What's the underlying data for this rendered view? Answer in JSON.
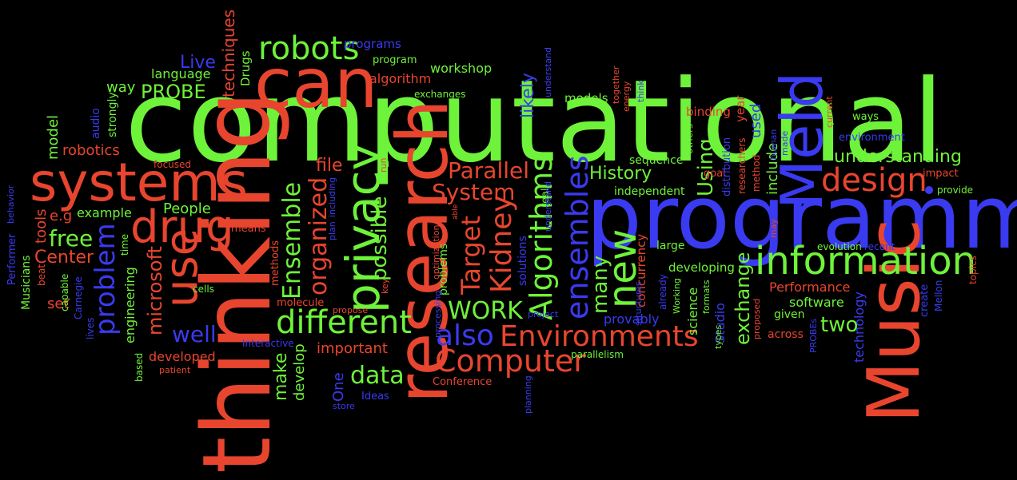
{
  "colors": {
    "red": "#e8452f",
    "green": "#6ff23a",
    "blue": "#3a3af0",
    "background": "#000000"
  },
  "words": [
    {
      "text": "computational",
      "color": "green"
    },
    {
      "text": "programming",
      "color": "blue"
    },
    {
      "text": "thinking",
      "color": "red"
    },
    {
      "text": "Music",
      "color": "red"
    },
    {
      "text": "research",
      "color": "red"
    },
    {
      "text": "can",
      "color": "red"
    },
    {
      "text": "systems",
      "color": "red"
    },
    {
      "text": "Meld",
      "color": "blue"
    },
    {
      "text": "information",
      "color": "green"
    },
    {
      "text": "privacy",
      "color": "green"
    },
    {
      "text": "use",
      "color": "red"
    },
    {
      "text": "drug",
      "color": "red"
    },
    {
      "text": "robots",
      "color": "green"
    },
    {
      "text": "different",
      "color": "green"
    },
    {
      "text": "Computer",
      "color": "red"
    },
    {
      "text": "Environments",
      "color": "red"
    },
    {
      "text": "ensembles",
      "color": "blue"
    },
    {
      "text": "new",
      "color": "green"
    },
    {
      "text": "Algorithms",
      "color": "green"
    },
    {
      "text": "Kidney",
      "color": "red"
    },
    {
      "text": "design",
      "color": "red"
    },
    {
      "text": "also",
      "color": "blue"
    },
    {
      "text": "problem",
      "color": "blue"
    },
    {
      "text": "organized",
      "color": "red"
    },
    {
      "text": "Ensemble",
      "color": "green"
    },
    {
      "text": "WORK",
      "color": "green"
    },
    {
      "text": "possible",
      "color": "green"
    },
    {
      "text": "Target",
      "color": "red"
    },
    {
      "text": "System",
      "color": "red"
    },
    {
      "text": "Parallel",
      "color": "red"
    },
    {
      "text": "well",
      "color": "blue"
    },
    {
      "text": "microsoft",
      "color": "red"
    },
    {
      "text": "data",
      "color": "green"
    },
    {
      "text": "many",
      "color": "green"
    },
    {
      "text": "understanding",
      "color": "green"
    },
    {
      "text": "History",
      "color": "green"
    },
    {
      "text": "Using",
      "color": "green"
    },
    {
      "text": "free",
      "color": "green"
    },
    {
      "text": "exchange",
      "color": "green"
    },
    {
      "text": "two",
      "color": "green"
    },
    {
      "text": "PROBE",
      "color": "green"
    },
    {
      "text": "Live",
      "color": "blue"
    },
    {
      "text": "file",
      "color": "red"
    },
    {
      "text": "Center",
      "color": "red"
    },
    {
      "text": "important",
      "color": "red"
    },
    {
      "text": "make",
      "color": "green"
    },
    {
      "text": "develop",
      "color": "green"
    },
    {
      "text": "likely",
      "color": "blue"
    },
    {
      "text": "techniques",
      "color": "red"
    },
    {
      "text": "robotics",
      "color": "red"
    },
    {
      "text": "tools",
      "color": "red"
    },
    {
      "text": "e.g",
      "color": "red"
    },
    {
      "text": "People",
      "color": "green"
    },
    {
      "text": "example",
      "color": "green"
    },
    {
      "text": "model",
      "color": "green"
    },
    {
      "text": "language",
      "color": "green"
    },
    {
      "text": "way",
      "color": "green"
    },
    {
      "text": "algorithm",
      "color": "red"
    },
    {
      "text": "workshop",
      "color": "green"
    },
    {
      "text": "include",
      "color": "green"
    },
    {
      "text": "used",
      "color": "blue"
    },
    {
      "text": "provably",
      "color": "blue"
    },
    {
      "text": "science",
      "color": "green"
    },
    {
      "text": "Studio",
      "color": "blue"
    },
    {
      "text": "developed",
      "color": "red"
    },
    {
      "text": "engineering",
      "color": "green"
    },
    {
      "text": "One",
      "color": "blue"
    },
    {
      "text": "Performance",
      "color": "red"
    },
    {
      "text": "software",
      "color": "green"
    },
    {
      "text": "technology",
      "color": "blue"
    },
    {
      "text": "developing",
      "color": "green"
    },
    {
      "text": "concurrency",
      "color": "red"
    },
    {
      "text": "binding",
      "color": "red"
    },
    {
      "text": "year",
      "color": "red"
    },
    {
      "text": "models",
      "color": "green"
    },
    {
      "text": "Drugs",
      "color": "green"
    },
    {
      "text": "set",
      "color": "red"
    },
    {
      "text": "solutions",
      "color": "blue"
    },
    {
      "text": "problems",
      "color": "green"
    },
    {
      "text": "large",
      "color": "green"
    },
    {
      "text": "independent",
      "color": "green"
    },
    {
      "text": "sequence",
      "color": "green"
    },
    {
      "text": "complex",
      "color": "green"
    },
    {
      "text": "Musicians",
      "color": "green"
    },
    {
      "text": "audio",
      "color": "blue"
    },
    {
      "text": "strongly",
      "color": "green"
    },
    {
      "text": "given",
      "color": "green"
    },
    {
      "text": "across",
      "color": "red"
    },
    {
      "text": "programs",
      "color": "blue"
    },
    {
      "text": "program",
      "color": "green"
    },
    {
      "text": "exchanges",
      "color": "green"
    },
    {
      "text": "real",
      "color": "green"
    },
    {
      "text": "goal",
      "color": "red"
    },
    {
      "text": "impact",
      "color": "red"
    },
    {
      "text": "environment",
      "color": "blue"
    },
    {
      "text": "ways",
      "color": "green"
    },
    {
      "text": "provide",
      "color": "green"
    },
    {
      "text": "Conference",
      "color": "red"
    },
    {
      "text": "Ideas",
      "color": "blue"
    },
    {
      "text": "means",
      "color": "red"
    },
    {
      "text": "methods",
      "color": "red"
    },
    {
      "text": "molecule",
      "color": "red"
    },
    {
      "text": "evolution",
      "color": "green"
    },
    {
      "text": "recent",
      "color": "blue"
    },
    {
      "text": "parallelism",
      "color": "green"
    },
    {
      "text": "Interactive",
      "color": "blue"
    },
    {
      "text": "focused",
      "color": "red"
    },
    {
      "text": "capable",
      "color": "green"
    },
    {
      "text": "beat",
      "color": "red"
    },
    {
      "text": "time",
      "color": "green"
    },
    {
      "text": "cells",
      "color": "green"
    },
    {
      "text": "lives",
      "color": "blue"
    },
    {
      "text": "Carnegie",
      "color": "blue"
    },
    {
      "text": "based",
      "color": "green"
    },
    {
      "text": "patient",
      "color": "red"
    },
    {
      "text": "Performer",
      "color": "blue"
    },
    {
      "text": "behavior",
      "color": "blue"
    },
    {
      "text": "store",
      "color": "blue"
    },
    {
      "text": "planning",
      "color": "blue"
    },
    {
      "text": "project",
      "color": "blue"
    },
    {
      "text": "optimization",
      "color": "red"
    },
    {
      "text": "processing",
      "color": "blue"
    },
    {
      "text": "able",
      "color": "red"
    },
    {
      "text": "propose",
      "color": "red"
    },
    {
      "text": "key",
      "color": "red"
    },
    {
      "text": "run",
      "color": "red"
    },
    {
      "text": "including",
      "color": "blue"
    },
    {
      "text": "plan",
      "color": "blue"
    },
    {
      "text": "understand",
      "color": "blue"
    },
    {
      "text": "together",
      "color": "red"
    },
    {
      "text": "energy",
      "color": "red"
    },
    {
      "text": "think",
      "color": "blue"
    },
    {
      "text": "others",
      "color": "green"
    },
    {
      "text": "already",
      "color": "blue"
    },
    {
      "text": "Working",
      "color": "green"
    },
    {
      "text": "structures",
      "color": "blue"
    },
    {
      "text": "formats",
      "color": "green"
    },
    {
      "text": "types",
      "color": "green"
    },
    {
      "text": "proposed",
      "color": "red"
    },
    {
      "text": "distribution",
      "color": "blue"
    },
    {
      "text": "researchers",
      "color": "red"
    },
    {
      "text": "method",
      "color": "red"
    },
    {
      "text": "human",
      "color": "blue"
    },
    {
      "text": "may",
      "color": "red"
    },
    {
      "text": "made",
      "color": "blue"
    },
    {
      "text": "create",
      "color": "blue"
    },
    {
      "text": "Mellon",
      "color": "blue"
    },
    {
      "text": "PROBEs",
      "color": "blue"
    },
    {
      "text": "current",
      "color": "red"
    },
    {
      "text": "topics",
      "color": "red"
    }
  ]
}
